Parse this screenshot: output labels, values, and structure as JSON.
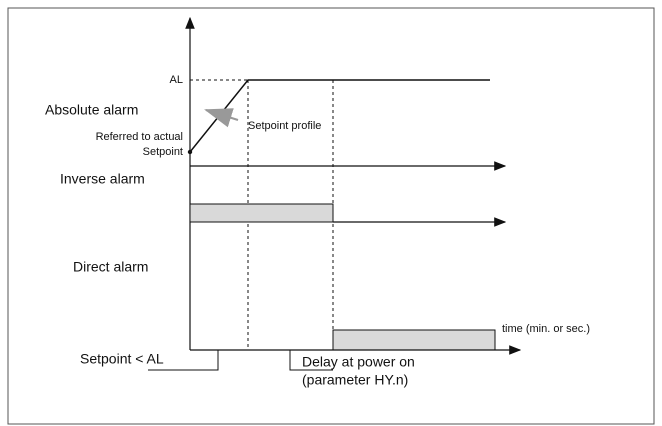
{
  "labels": {
    "al": "AL",
    "absolute_alarm": "Absolute alarm",
    "referred": "Referred to actual",
    "setpoint": "Setpoint",
    "setpoint_profile": "Setpoint profile",
    "inverse_alarm": "Inverse alarm",
    "direct_alarm": "Direct alarm",
    "time": "time  (min. or sec.)",
    "setpoint_lt_al": "Setpoint <  AL",
    "delay": "Delay at power on",
    "parameter": "(parameter  HY.n)"
  }
}
